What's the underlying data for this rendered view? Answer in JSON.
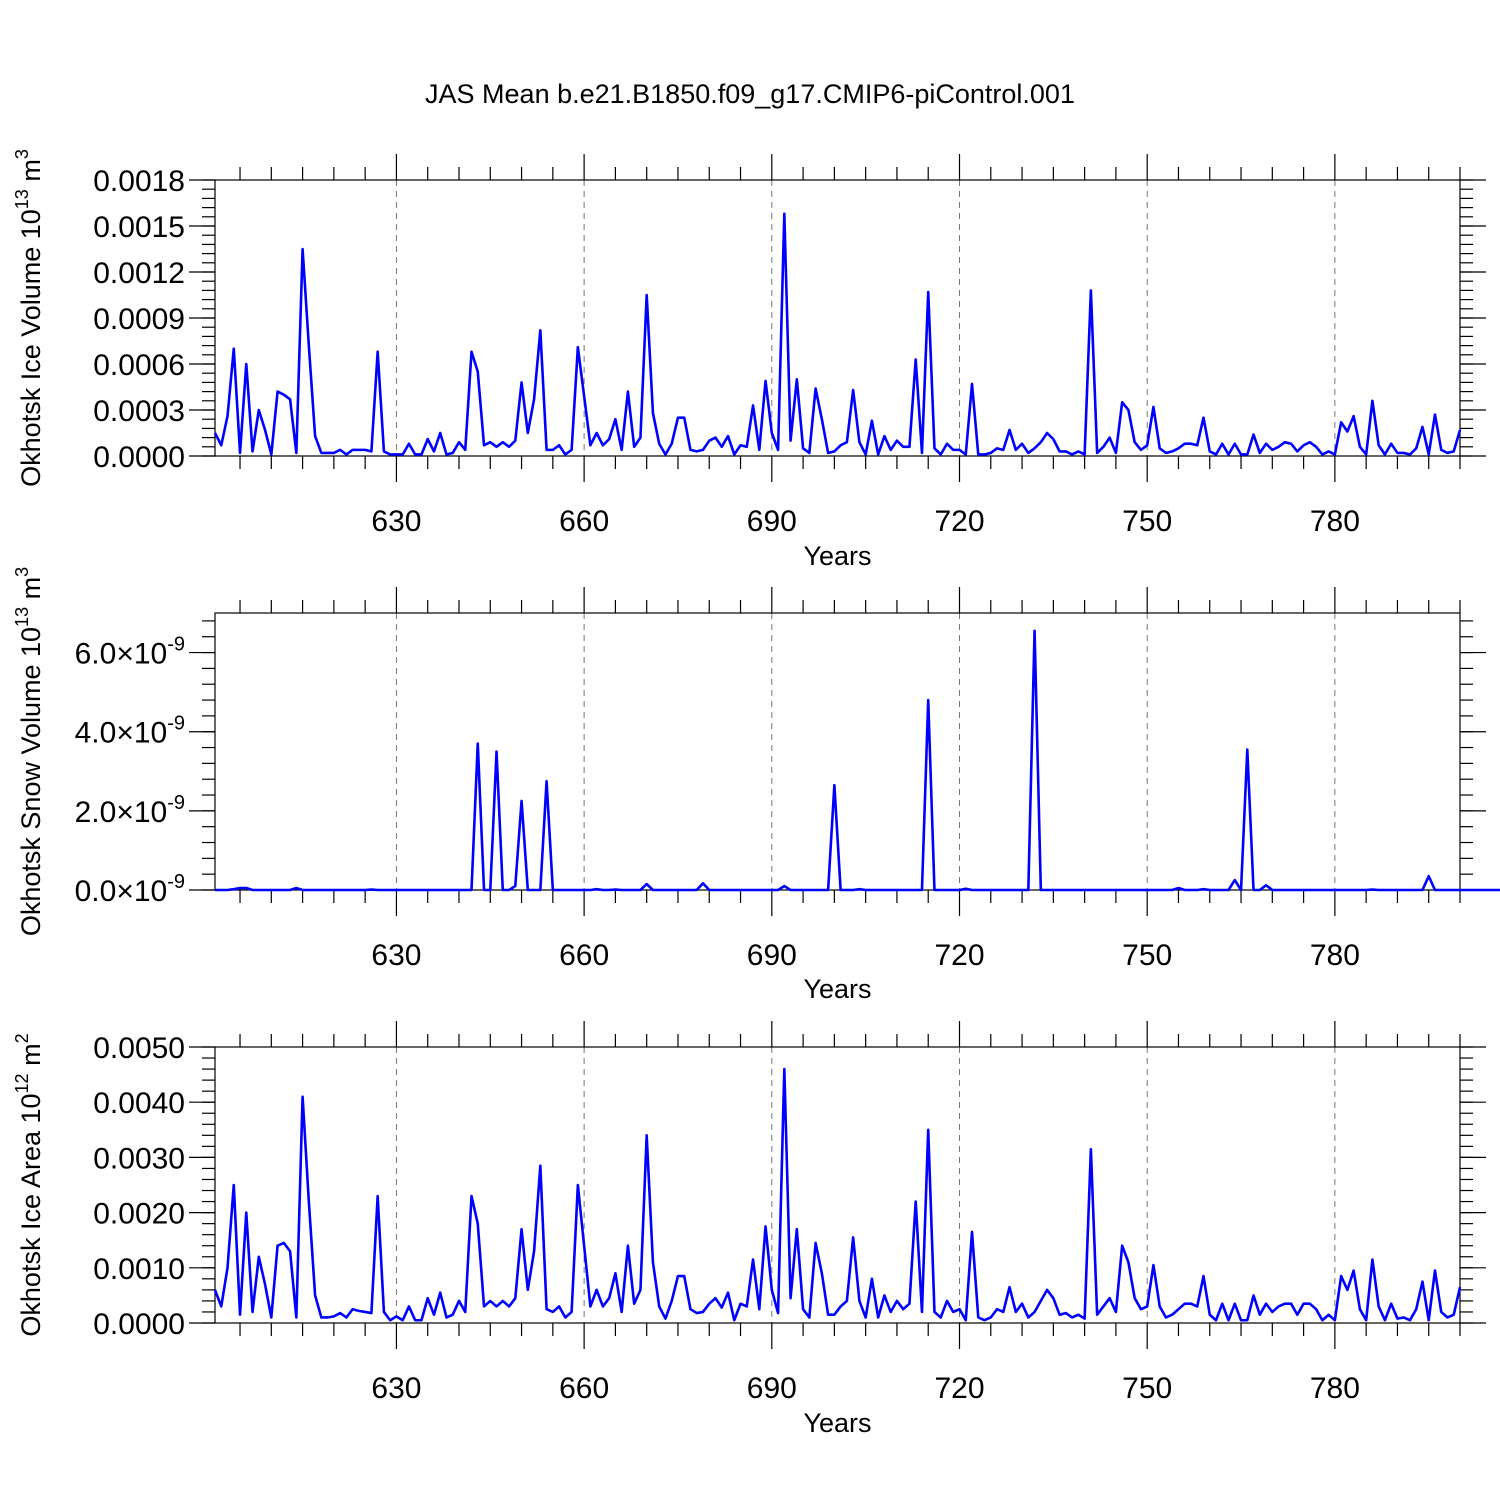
{
  "title": "JAS Mean b.e21.B1850.f09_g17.CMIP6-piControl.001",
  "chart_data": [
    {
      "type": "line",
      "xlabel": "Years",
      "ylabel": "Okhotsk Ice Volume 10",
      "ylabel_sup": "13",
      "ylabel_unit": "m",
      "ylabel_unit_sup": "3",
      "xlim": [
        601,
        800
      ],
      "xticks": [
        630,
        660,
        690,
        720,
        750,
        780
      ],
      "xtick_labels": [
        "630",
        "660",
        "690",
        "720",
        "750",
        "780"
      ],
      "ylim": [
        0,
        0.0018
      ],
      "yticks": [
        0,
        0.0003,
        0.0006,
        0.0009,
        0.0012,
        0.0015,
        0.0018
      ],
      "ytick_labels": [
        "0.0000",
        "0.0003",
        "0.0006",
        "0.0009",
        "0.0012",
        "0.0015",
        "0.0018"
      ],
      "grid": "x-dashed",
      "series": [
        {
          "color": "#0000ff",
          "x_start": 601,
          "values": [
            0.00015,
            7e-05,
            0.00026,
            0.0007,
            2e-05,
            0.0006,
            3e-05,
            0.0003,
            0.00017,
            1e-05,
            0.00042,
            0.0004,
            0.00037,
            2e-05,
            0.00135,
            0.00072,
            0.00013,
            2e-05,
            2e-05,
            2e-05,
            4e-05,
            1e-05,
            4e-05,
            4e-05,
            4e-05,
            3e-05,
            0.00068,
            3e-05,
            1e-05,
            1e-05,
            1e-05,
            8e-05,
            1e-05,
            1e-05,
            0.00011,
            3e-05,
            0.00015,
            1e-05,
            2e-05,
            9e-05,
            4e-05,
            0.00068,
            0.00055,
            7e-05,
            9e-05,
            6e-05,
            9e-05,
            6e-05,
            0.0001,
            0.00048,
            0.00015,
            0.00037,
            0.00082,
            4e-05,
            4e-05,
            7e-05,
            1e-05,
            4e-05,
            0.00071,
            0.00039,
            7e-05,
            0.00015,
            7e-05,
            0.00011,
            0.00024,
            4e-05,
            0.00042,
            6e-05,
            0.00012,
            0.00105,
            0.00028,
            8e-05,
            1e-05,
            8e-05,
            0.00025,
            0.00025,
            4e-05,
            3e-05,
            4e-05,
            0.0001,
            0.00012,
            6e-05,
            0.00013,
            1e-05,
            7e-05,
            6e-05,
            0.00033,
            4e-05,
            0.00049,
            0.00015,
            4e-05,
            0.00158,
            0.0001,
            0.0005,
            5e-05,
            2e-05,
            0.00044,
            0.00024,
            2e-05,
            3e-05,
            7e-05,
            9e-05,
            0.00043,
            9e-05,
            1e-05,
            0.00023,
            1e-05,
            0.00013,
            4e-05,
            0.0001,
            6e-05,
            6e-05,
            0.00063,
            2e-05,
            0.00107,
            5e-05,
            1e-05,
            8e-05,
            4e-05,
            4e-05,
            1e-05,
            0.00047,
            1e-05,
            1e-05,
            2e-05,
            5e-05,
            4e-05,
            0.00017,
            4e-05,
            8e-05,
            2e-05,
            5e-05,
            9e-05,
            0.00015,
            0.00011,
            3e-05,
            3e-05,
            1e-05,
            3e-05,
            1e-05,
            0.00108,
            2e-05,
            6e-05,
            0.00012,
            2e-05,
            0.00035,
            0.0003,
            9e-05,
            4e-05,
            7e-05,
            0.00032,
            5e-05,
            2e-05,
            3e-05,
            5e-05,
            8e-05,
            8e-05,
            7e-05,
            0.00025,
            3e-05,
            1e-05,
            8e-05,
            1e-05,
            8e-05,
            1e-05,
            1e-05,
            0.00014,
            2e-05,
            8e-05,
            4e-05,
            6e-05,
            9e-05,
            8e-05,
            3e-05,
            7e-05,
            9e-05,
            6e-05,
            1e-05,
            3e-05,
            1e-05,
            0.00022,
            0.00016,
            0.00026,
            6e-05,
            1e-05,
            0.00036,
            7e-05,
            1e-05,
            8e-05,
            2e-05,
            2e-05,
            1e-05,
            5e-05,
            0.00019,
            1e-05,
            0.00027,
            4e-05,
            2e-05,
            3e-05,
            0.00017
          ]
        }
      ]
    },
    {
      "type": "line",
      "xlabel": "Years",
      "ylabel": "Okhotsk Snow Volume 10",
      "ylabel_sup": "13",
      "ylabel_unit": "m",
      "ylabel_unit_sup": "3",
      "xlim": [
        601,
        800
      ],
      "xticks": [
        630,
        660,
        690,
        720,
        750,
        780
      ],
      "xtick_labels": [
        "630",
        "660",
        "690",
        "720",
        "750",
        "780"
      ],
      "ylim": [
        0,
        7e-09
      ],
      "yticks": [
        0,
        2e-09,
        4e-09,
        6e-09
      ],
      "ytick_mantissas": [
        "0.0",
        "2.0",
        "4.0",
        "6.0"
      ],
      "ytick_exponent": "-9",
      "grid": "x-dashed",
      "series": [
        {
          "color": "#0000ff",
          "x_start": 601,
          "values": [
            0,
            0,
            0,
            2e-11,
            5e-11,
            5e-11,
            0,
            0,
            0,
            0,
            0,
            0,
            0,
            5e-11,
            0,
            0,
            0,
            0,
            0,
            0,
            0,
            0,
            0,
            0,
            0,
            1e-11,
            0,
            0,
            0,
            0,
            0,
            0,
            0,
            0,
            0,
            0,
            0,
            0,
            0,
            0,
            0,
            0,
            3.7e-09,
            0,
            0,
            3.5e-09,
            0,
            0,
            1e-10,
            2.25e-09,
            0,
            0,
            0,
            2.75e-09,
            0,
            0,
            0,
            0,
            0,
            0,
            0,
            2e-11,
            0,
            0,
            1e-11,
            0,
            0,
            0,
            0,
            1.5e-10,
            0,
            0,
            0,
            0,
            0,
            0,
            0,
            0,
            1.7e-10,
            0,
            0,
            0,
            0,
            0,
            0,
            0,
            0,
            0,
            0,
            0,
            0,
            1e-10,
            0,
            0,
            0,
            0,
            0,
            0,
            0,
            2.65e-09,
            0,
            0,
            0,
            2e-11,
            0,
            0,
            0,
            0,
            0,
            0,
            0,
            0,
            0,
            0,
            4.8e-09,
            0,
            0,
            0,
            0,
            0,
            3e-11,
            0,
            0,
            0,
            0,
            0,
            0,
            0,
            0,
            0,
            0,
            6.55e-09,
            0,
            0,
            0,
            0,
            0,
            0,
            0,
            0,
            0,
            0,
            0,
            0,
            0,
            0,
            0,
            0,
            0,
            0,
            0,
            0,
            0,
            0,
            5e-11,
            0,
            0,
            0,
            2e-11,
            0,
            0,
            0,
            0,
            2.5e-10,
            0,
            3.55e-09,
            0,
            0,
            1.2e-10,
            0,
            0,
            0,
            0,
            0,
            0,
            0,
            0,
            0,
            0,
            0,
            0,
            0,
            0,
            0,
            0,
            1e-11,
            0,
            0,
            0,
            0,
            0,
            0,
            0,
            0,
            3.5e-10,
            0,
            0,
            0,
            0,
            0,
            0,
            0,
            0,
            0,
            0,
            0,
            0,
            0,
            0,
            0,
            0,
            0,
            0,
            0
          ]
        }
      ]
    },
    {
      "type": "line",
      "xlabel": "Years",
      "ylabel": "Okhotsk Ice Area 10",
      "ylabel_sup": "12",
      "ylabel_unit": "m",
      "ylabel_unit_sup": "2",
      "xlim": [
        601,
        800
      ],
      "xticks": [
        630,
        660,
        690,
        720,
        750,
        780
      ],
      "xtick_labels": [
        "630",
        "660",
        "690",
        "720",
        "750",
        "780"
      ],
      "ylim": [
        0,
        0.005
      ],
      "yticks": [
        0,
        0.001,
        0.002,
        0.003,
        0.004,
        0.005
      ],
      "ytick_labels": [
        "0.0000",
        "0.0010",
        "0.0020",
        "0.0030",
        "0.0040",
        "0.0050"
      ],
      "grid": "x-dashed",
      "series": [
        {
          "color": "#0000ff",
          "x_start": 601,
          "values": [
            0.0006,
            0.0003,
            0.001,
            0.0025,
            0.00015,
            0.002,
            0.0002,
            0.0012,
            0.0007,
            0.0001,
            0.0014,
            0.00145,
            0.0013,
            0.0001,
            0.0041,
            0.0022,
            0.0005,
            0.0001,
            0.0001,
            0.00012,
            0.00018,
            0.0001,
            0.00025,
            0.00022,
            0.0002,
            0.00018,
            0.0023,
            0.0002,
            5e-05,
            0.00012,
            5e-05,
            0.0003,
            5e-05,
            5e-05,
            0.00045,
            0.00015,
            0.00055,
            0.0001,
            0.00015,
            0.0004,
            0.0002,
            0.0023,
            0.0018,
            0.0003,
            0.0004,
            0.0003,
            0.0004,
            0.0003,
            0.00045,
            0.0017,
            0.0006,
            0.0013,
            0.00285,
            0.00025,
            0.0002,
            0.0003,
            0.0001,
            0.0002,
            0.0025,
            0.0014,
            0.0003,
            0.0006,
            0.0003,
            0.00045,
            0.0009,
            0.0002,
            0.0014,
            0.00035,
            0.0006,
            0.0034,
            0.0011,
            0.0003,
            8e-05,
            0.0004,
            0.00085,
            0.00085,
            0.00025,
            0.00018,
            0.0002,
            0.00035,
            0.00045,
            0.00028,
            0.00055,
            5e-05,
            0.00035,
            0.0003,
            0.00115,
            0.00025,
            0.00175,
            0.0006,
            0.00018,
            0.0046,
            0.00045,
            0.0017,
            0.00025,
            0.0001,
            0.00145,
            0.0009,
            0.00015,
            0.00015,
            0.0003,
            0.0004,
            0.00155,
            0.0004,
            0.0001,
            0.0008,
            0.0001,
            0.0005,
            0.0002,
            0.0004,
            0.00025,
            0.00035,
            0.0022,
            0.0002,
            0.0035,
            0.0002,
            0.0001,
            0.0004,
            0.0002,
            0.00025,
            5e-05,
            0.00165,
            0.0001,
            5e-05,
            0.0001,
            0.00025,
            0.0002,
            0.00065,
            0.0002,
            0.00035,
            0.0001,
            0.0002,
            0.0004,
            0.0006,
            0.00045,
            0.00015,
            0.00018,
            0.0001,
            0.00015,
            8e-05,
            0.00315,
            0.00015,
            0.0003,
            0.00045,
            0.0002,
            0.0014,
            0.0011,
            0.00045,
            0.00025,
            0.0003,
            0.00105,
            0.0003,
            0.0001,
            0.00015,
            0.00025,
            0.00035,
            0.00035,
            0.0003,
            0.00085,
            0.00015,
            5e-05,
            0.00035,
            5e-05,
            0.00035,
            5e-05,
            5e-05,
            0.0005,
            0.00015,
            0.00035,
            0.0002,
            0.0003,
            0.00035,
            0.00035,
            0.00015,
            0.00035,
            0.00035,
            0.00025,
            5e-05,
            0.00015,
            5e-05,
            0.00085,
            0.0006,
            0.00095,
            0.00025,
            5e-05,
            0.00115,
            0.0003,
            5e-05,
            0.00035,
            8e-05,
            0.0001,
            5e-05,
            0.00025,
            0.00075,
            5e-05,
            0.00095,
            0.0002,
            0.0001,
            0.00015,
            0.00065
          ]
        }
      ]
    }
  ]
}
